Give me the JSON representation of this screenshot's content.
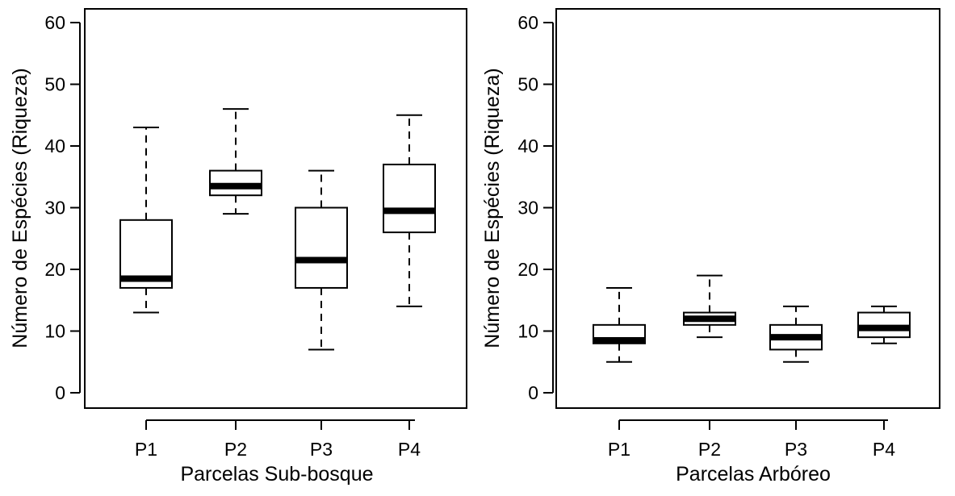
{
  "chart_data": [
    {
      "type": "boxplot",
      "title": "",
      "xlabel": "Parcelas Sub-bosque",
      "ylabel": "Número de Espécies (Riqueza)",
      "ylim": [
        0,
        60
      ],
      "yticks": [
        0,
        10,
        20,
        30,
        40,
        50,
        60
      ],
      "categories": [
        "P1",
        "P2",
        "P3",
        "P4"
      ],
      "boxes": [
        {
          "min": 13,
          "q1": 17,
          "median": 18.5,
          "q3": 28,
          "max": 43
        },
        {
          "min": 29,
          "q1": 32,
          "median": 33.5,
          "q3": 36,
          "max": 46
        },
        {
          "min": 7,
          "q1": 17,
          "median": 21.5,
          "q3": 30,
          "max": 36
        },
        {
          "min": 14,
          "q1": 26,
          "median": 29.5,
          "q3": 37,
          "max": 45
        }
      ],
      "grid": false,
      "legend": "none"
    },
    {
      "type": "boxplot",
      "title": "",
      "xlabel": "Parcelas Arbóreo",
      "ylabel": "Número de Espécies (Riqueza)",
      "ylim": [
        0,
        60
      ],
      "yticks": [
        0,
        10,
        20,
        30,
        40,
        50,
        60
      ],
      "categories": [
        "P1",
        "P2",
        "P3",
        "P4"
      ],
      "boxes": [
        {
          "min": 5,
          "q1": 8,
          "median": 8.5,
          "q3": 11,
          "max": 17
        },
        {
          "min": 9,
          "q1": 11,
          "median": 12,
          "q3": 13,
          "max": 19
        },
        {
          "min": 5,
          "q1": 7,
          "median": 9,
          "q3": 11,
          "max": 14
        },
        {
          "min": 8,
          "q1": 9,
          "median": 10.5,
          "q3": 13,
          "max": 14
        }
      ],
      "grid": false,
      "legend": "none"
    }
  ]
}
